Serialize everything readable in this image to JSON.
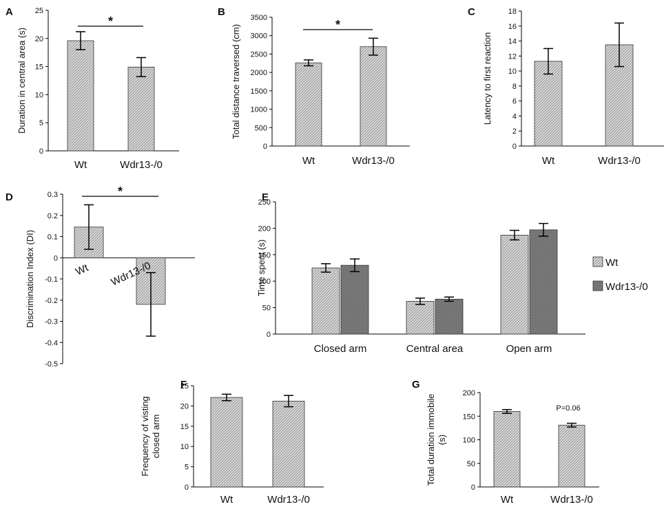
{
  "figure": {
    "hatch_color": "#c9c9c9",
    "dark_fill": "#7a7a7a",
    "axis_color": "#000000"
  },
  "chart_data": [
    {
      "panel": "A",
      "type": "bar",
      "categories": [
        "Wt",
        "Wdr13-/0"
      ],
      "values": [
        19.6,
        14.9
      ],
      "errors": [
        1.6,
        1.7
      ],
      "ylabel": "Duration in central area (s)",
      "ylim": [
        0,
        25
      ],
      "yticks": [
        "0",
        "5",
        "10",
        "15",
        "20",
        "25"
      ],
      "significance": "*"
    },
    {
      "panel": "B",
      "type": "bar",
      "categories": [
        "Wt",
        "Wdr13-/0"
      ],
      "values": [
        2260,
        2700
      ],
      "errors": [
        80,
        230
      ],
      "ylabel": "Total distance traversed (cm)",
      "ylim": [
        0,
        3500
      ],
      "yticks": [
        "0",
        "500",
        "1000",
        "1500",
        "2000",
        "2500",
        "3000",
        "3500"
      ],
      "significance": "*"
    },
    {
      "panel": "C",
      "type": "bar",
      "categories": [
        "Wt",
        "Wdr13-/0"
      ],
      "values": [
        11.3,
        13.5
      ],
      "errors": [
        1.7,
        2.9
      ],
      "ylabel": "Latency to first reaction",
      "ylim": [
        0,
        18
      ],
      "yticks": [
        "0",
        "2",
        "4",
        "6",
        "8",
        "10",
        "12",
        "14",
        "16",
        "18"
      ]
    },
    {
      "panel": "D",
      "type": "bar",
      "categories": [
        "Wt",
        "Wdr13-/0"
      ],
      "values": [
        0.145,
        -0.22
      ],
      "errors": [
        0.105,
        0.15
      ],
      "ylabel": "Discrimination Index (DI)",
      "ylim": [
        -0.5,
        0.3
      ],
      "yticks": [
        "-0.5",
        "-0.4",
        "-0.3",
        "-0.2",
        "-0.1",
        "0",
        "0.1",
        "0.2",
        "0.3"
      ],
      "significance": "*"
    },
    {
      "panel": "E",
      "type": "bar",
      "categories": [
        "Closed arm",
        "Central area",
        "Open arm"
      ],
      "series": [
        {
          "name": "Wt",
          "values": [
            125,
            62,
            187
          ],
          "errors": [
            8,
            6,
            9
          ]
        },
        {
          "name": "Wdr13-/0",
          "values": [
            130,
            66,
            197
          ],
          "errors": [
            12,
            4,
            12
          ]
        }
      ],
      "ylabel": "Time spent (s)",
      "ylim": [
        0,
        250
      ],
      "yticks": [
        "0",
        "50",
        "100",
        "150",
        "200",
        "250"
      ],
      "legend": [
        "Wt",
        "Wdr13-/0"
      ]
    },
    {
      "panel": "F",
      "type": "bar",
      "categories": [
        "Wt",
        "Wdr13-/0"
      ],
      "values": [
        22.1,
        21.2
      ],
      "errors": [
        0.8,
        1.4
      ],
      "ylabel": "Frequency of visting closed arm",
      "ylim": [
        0,
        25
      ],
      "yticks": [
        "0",
        "5",
        "10",
        "15",
        "20",
        "25"
      ]
    },
    {
      "panel": "G",
      "type": "bar",
      "categories": [
        "Wt",
        "Wdr13-/0"
      ],
      "values": [
        160,
        131
      ],
      "errors": [
        4,
        4
      ],
      "ylabel": "Total duration immobile (s)",
      "ylim": [
        0,
        200
      ],
      "yticks": [
        "0",
        "50",
        "100",
        "150",
        "200"
      ],
      "annotation": "P=0.06"
    }
  ]
}
